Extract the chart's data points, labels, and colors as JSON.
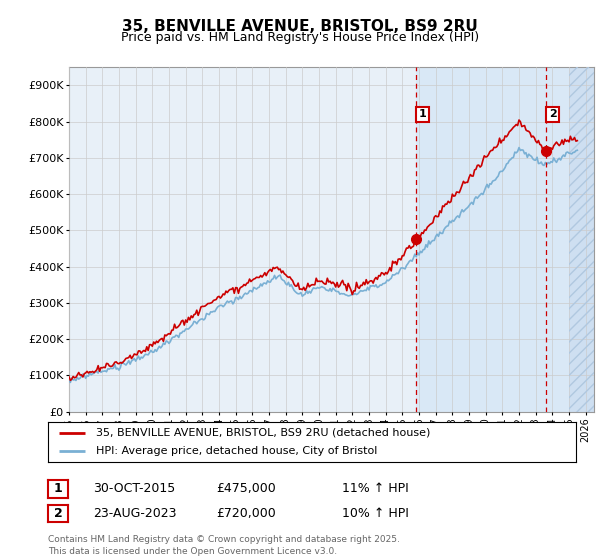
{
  "title": "35, BENVILLE AVENUE, BRISTOL, BS9 2RU",
  "subtitle": "Price paid vs. HM Land Registry's House Price Index (HPI)",
  "ylabel_ticks": [
    "£0",
    "£100K",
    "£200K",
    "£300K",
    "£400K",
    "£500K",
    "£600K",
    "£700K",
    "£800K",
    "£900K"
  ],
  "ylim": [
    0,
    950000
  ],
  "xlim_start": 1995.0,
  "xlim_end": 2026.5,
  "bg_color": "#dce8f5",
  "bg_color_right": "#dce8f5",
  "sale_shade_start": 2015.83,
  "hatch_color": "#c8d8ee",
  "sale1_x": 2015.83,
  "sale1_y": 475000,
  "sale2_x": 2023.64,
  "sale2_y": 720000,
  "sale1_date": "30-OCT-2015",
  "sale1_price": "£475,000",
  "sale1_hpi": "11% ↑ HPI",
  "sale2_date": "23-AUG-2023",
  "sale2_price": "£720,000",
  "sale2_hpi": "10% ↑ HPI",
  "legend_line1": "35, BENVILLE AVENUE, BRISTOL, BS9 2RU (detached house)",
  "legend_line2": "HPI: Average price, detached house, City of Bristol",
  "footer": "Contains HM Land Registry data © Crown copyright and database right 2025.\nThis data is licensed under the Open Government Licence v3.0.",
  "line_color_red": "#cc0000",
  "line_color_blue": "#7ab0d4",
  "grid_color": "#cccccc",
  "hatch_start_x": 2025.0,
  "chart_bg": "#e8f0f8"
}
